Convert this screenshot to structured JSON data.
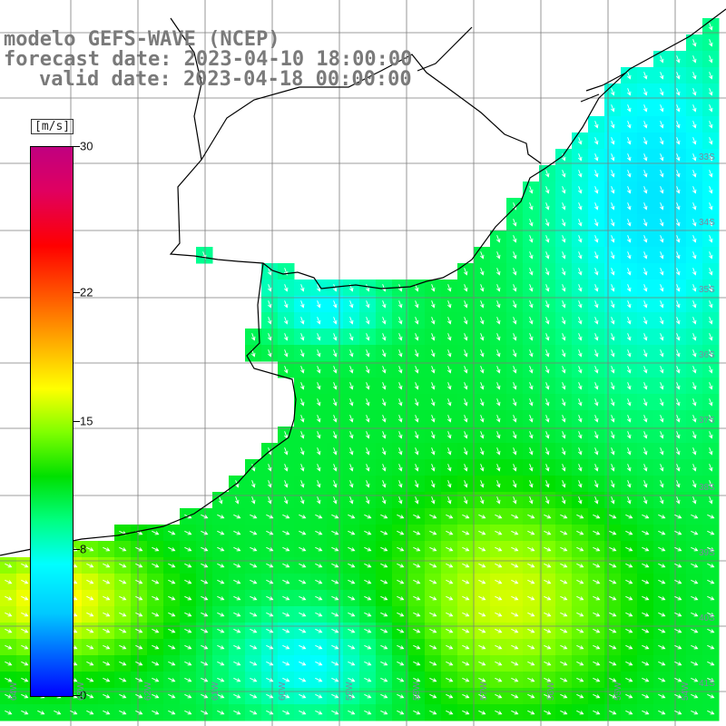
{
  "header": {
    "model_line": "modelo GEFS-WAVE (NCEP)",
    "forecast_line": "forecast date: 2023-04-10 18:00:00",
    "valid_line": "valid date: 2023-04-18 00:00:00"
  },
  "colorbar": {
    "units": "[m/s]",
    "labels": [
      "30",
      "22",
      "15",
      "8",
      "0"
    ],
    "label_values": [
      30,
      22,
      15,
      8,
      0
    ],
    "range": [
      0,
      30
    ]
  },
  "graticule": {
    "lat_labels": [
      "33S",
      "34S",
      "35S",
      "36S",
      "37S",
      "38S",
      "39S",
      "40S",
      "41S"
    ],
    "lon_labels": [
      "64W",
      "63W",
      "62W",
      "61W",
      "60W",
      "59W",
      "58W",
      "57W",
      "56W",
      "55W",
      "54W"
    ]
  },
  "map": {
    "variable": "wind speed",
    "land_color": "#ffffff",
    "coastline_color": "#000000",
    "grid_color": "#7d7d7d",
    "arrow_color": "#ffffff"
  }
}
